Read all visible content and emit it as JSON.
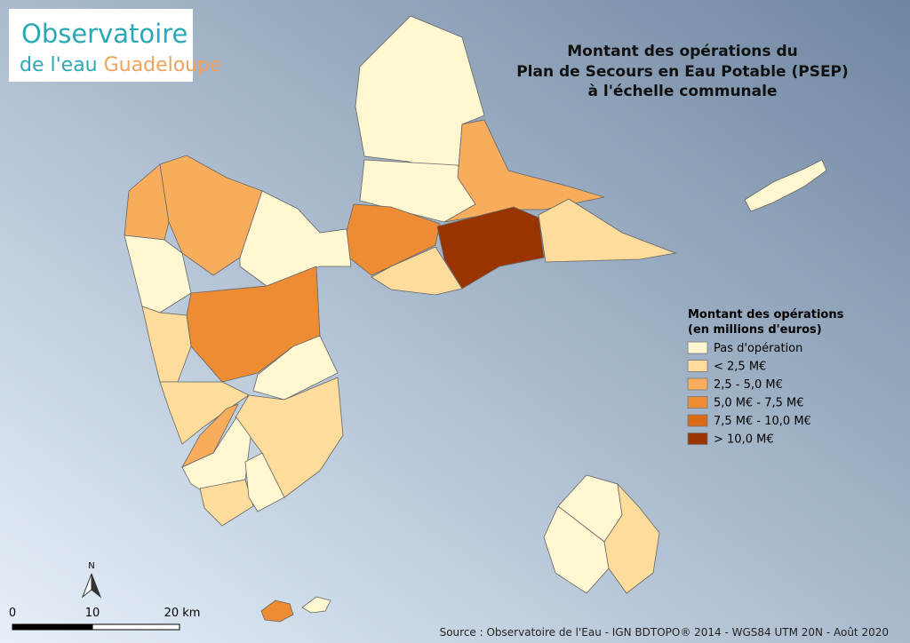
{
  "logo": {
    "line1": "Observatoire",
    "line2a": "de l'eau",
    "line2b": "Guadeloupe"
  },
  "title": [
    "Montant des opérations du",
    "Plan de Secours en Eau Potable (PSEP)",
    "à l'échelle communale"
  ],
  "legend": {
    "title": [
      "Montant des opérations",
      "(en millions d'euros)"
    ],
    "items": [
      {
        "label": "Pas d'opération",
        "color": "#fff6d2"
      },
      {
        "label": "< 2,5 M€",
        "color": "#fddc9c"
      },
      {
        "label": "2,5 - 5,0 M€",
        "color": "#f7ad5c"
      },
      {
        "label": "5,0 M€ - 7,5 M€",
        "color": "#ee8c33"
      },
      {
        "label": "7,5 M€ - 10,0 M€",
        "color": "#d96a16"
      },
      {
        "label": "> 10,0 M€",
        "color": "#993300"
      }
    ]
  },
  "north": "N",
  "scale": {
    "labels": [
      "0",
      "10",
      "20 km"
    ]
  },
  "source": "Source : Observatoire de l'Eau - IGN BDTOPO® 2014 - WGS84 UTM 20N - Août 2020"
}
